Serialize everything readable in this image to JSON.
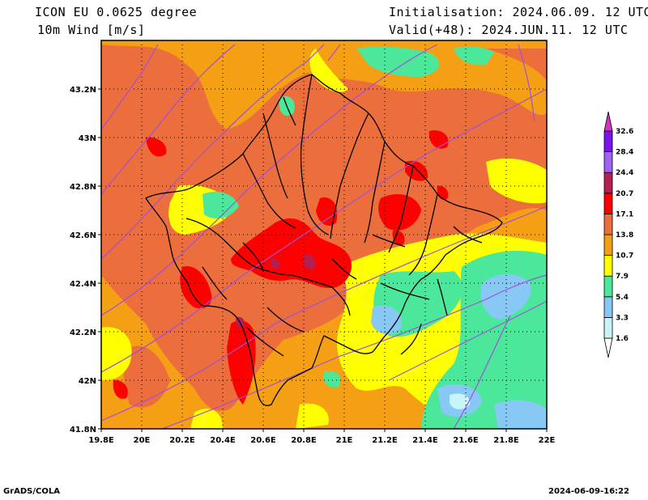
{
  "header": {
    "model_line": "ICON EU 0.0625 degree",
    "var_line": "10m Wind [m/s]",
    "init_line": "Initialisation: 2024.06.09. 12 UTC",
    "valid_line": "Valid(+48): 2024.JUN.11. 12 UTC"
  },
  "map": {
    "lon_range": [
      19.8,
      22.0
    ],
    "lat_range": [
      41.8,
      43.4
    ],
    "x_ticks": [
      "19.8E",
      "20E",
      "20.2E",
      "20.4E",
      "20.6E",
      "20.8E",
      "21E",
      "21.2E",
      "21.4E",
      "21.6E",
      "21.8E",
      "22E"
    ],
    "y_ticks": [
      "41.8N",
      "42N",
      "42.2N",
      "42.4N",
      "42.6N",
      "42.8N",
      "43N",
      "43.2N"
    ],
    "grid": "dotted"
  },
  "legend": {
    "labels": [
      "1.6",
      "3.3",
      "5.4",
      "7.9",
      "10.7",
      "13.8",
      "17.1",
      "20.7",
      "24.4",
      "28.4",
      "32.6"
    ],
    "colors": [
      "#ffffff",
      "#c8f5f8",
      "#87c8f5",
      "#4be79b",
      "#ffff00",
      "#f5a014",
      "#eb6e3c",
      "#ff0000",
      "#b41e50",
      "#a064f5",
      "#7814f0",
      "#d232c8"
    ]
  },
  "footer": {
    "left": "GrADS/COLA",
    "right": "2024-06-09-16:22"
  }
}
